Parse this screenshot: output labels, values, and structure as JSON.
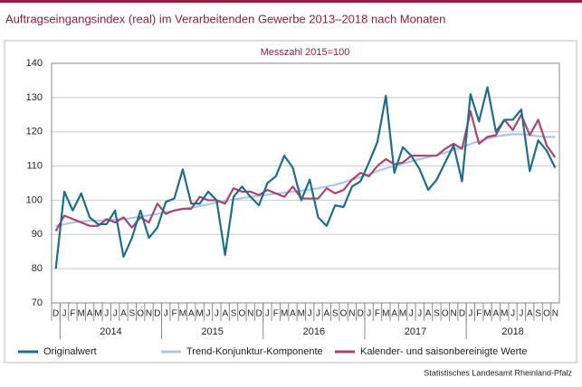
{
  "chart_data": {
    "type": "line",
    "title": "Auftragseingangsindex (real) im Verarbeitenden Gewerbe 2013–2018 nach Monaten",
    "subtitle": "Messzahl 2015=100",
    "source": "Statistisches Landesamt Rheinland-Pfalz",
    "categories": [
      "D",
      "J",
      "F",
      "M",
      "A",
      "M",
      "J",
      "J",
      "A",
      "S",
      "O",
      "N",
      "D",
      "J",
      "F",
      "M",
      "A",
      "M",
      "J",
      "J",
      "A",
      "S",
      "O",
      "N",
      "D",
      "J",
      "F",
      "M",
      "A",
      "M",
      "J",
      "J",
      "A",
      "S",
      "O",
      "N",
      "D",
      "J",
      "F",
      "M",
      "A",
      "M",
      "J",
      "J",
      "A",
      "S",
      "O",
      "N",
      "D",
      "J",
      "F",
      "M",
      "A",
      "M",
      "J",
      "J",
      "A",
      "S",
      "O",
      "N"
    ],
    "x_groups": [
      "2014",
      "2015",
      "2016",
      "2017",
      "2018"
    ],
    "ylim": [
      70,
      140
    ],
    "yticks": [
      70,
      80,
      90,
      100,
      110,
      120,
      130,
      140
    ],
    "grid": true,
    "series": [
      {
        "name": "Originalwert",
        "color": "#1a6e8e",
        "values": [
          80,
          102.5,
          97,
          102,
          95,
          93,
          93,
          97,
          83.5,
          89,
          97,
          89,
          92,
          99.5,
          100.5,
          109,
          99,
          99,
          102.5,
          100,
          84,
          101,
          104,
          101,
          98.5,
          105,
          107,
          113,
          109.5,
          100,
          106,
          95,
          92.5,
          98.5,
          98,
          104,
          105.5,
          111,
          117,
          130.5,
          108,
          115.5,
          113,
          109,
          103,
          106,
          111,
          116,
          105.5,
          131,
          123,
          133,
          120,
          123.5,
          123.5,
          126.5,
          108.5,
          117.5,
          114.5,
          109.5
        ]
      },
      {
        "name": "Trend-Konjunktur-Komponente",
        "color": "#a9c9e2",
        "values": [
          92.5,
          93,
          93.5,
          93.8,
          94,
          94,
          94.2,
          94.3,
          94.5,
          94.8,
          95.2,
          95.6,
          96,
          96.5,
          97,
          97.4,
          97.8,
          98.3,
          98.8,
          99.3,
          99.8,
          100.2,
          100.6,
          101,
          101.3,
          101.6,
          101.9,
          102.2,
          102.5,
          102.8,
          103.1,
          103.5,
          104,
          104.5,
          105.2,
          106,
          106.8,
          107.6,
          108.5,
          109.3,
          110,
          110.7,
          111.4,
          112,
          112.6,
          113.2,
          113.9,
          114.7,
          115.5,
          116.4,
          117.3,
          118,
          118.6,
          119,
          119.3,
          119.3,
          119,
          118.7,
          118.5,
          118.5
        ]
      },
      {
        "name": "Kalender- und saisonbereinigte Werte",
        "color": "#b0426e",
        "values": [
          91,
          95.5,
          94.5,
          93.5,
          92.5,
          92.5,
          94.5,
          93.5,
          95,
          92,
          95,
          93.5,
          99,
          96,
          97,
          97.5,
          97.5,
          101,
          100,
          100,
          99,
          103.5,
          102.5,
          102.5,
          101.5,
          103,
          102,
          101,
          104,
          100.5,
          100.5,
          100.5,
          103.5,
          102,
          103,
          106,
          108,
          107,
          110,
          112,
          110.5,
          111,
          113,
          113,
          113,
          113,
          115,
          116.5,
          115,
          126,
          116.5,
          118.5,
          119,
          123.5,
          120.5,
          125,
          119,
          123.5,
          116,
          112.5
        ]
      }
    ]
  }
}
